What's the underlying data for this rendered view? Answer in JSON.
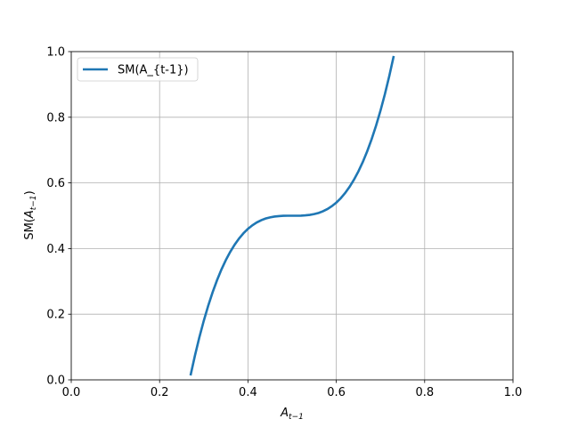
{
  "chart_data": {
    "type": "line",
    "xlabel": [
      "A",
      "t−1"
    ],
    "ylabel": [
      "SM(",
      "A",
      "t−1",
      ")"
    ],
    "x": [
      0.27,
      0.28,
      0.29,
      0.3,
      0.31,
      0.32,
      0.33,
      0.34,
      0.35,
      0.36,
      0.37,
      0.38,
      0.39,
      0.4,
      0.41,
      0.42,
      0.43,
      0.44,
      0.45,
      0.46,
      0.47,
      0.48,
      0.49,
      0.5,
      0.51,
      0.52,
      0.53,
      0.54,
      0.55,
      0.56,
      0.57,
      0.58,
      0.59,
      0.6,
      0.61,
      0.62,
      0.63,
      0.64,
      0.65,
      0.66,
      0.67,
      0.68,
      0.69,
      0.7,
      0.71,
      0.72,
      0.73
    ],
    "series": [
      {
        "name": "SM(A_{t-1})",
        "color": "#1f77b4",
        "values": [
          0.0133,
          0.0741,
          0.1296,
          0.18,
          0.2256,
          0.2667,
          0.3035,
          0.3362,
          0.365,
          0.3902,
          0.4121,
          0.4309,
          0.4468,
          0.46,
          0.4708,
          0.4795,
          0.4863,
          0.4914,
          0.495,
          0.4974,
          0.4989,
          0.4997,
          0.5,
          0.5,
          0.5,
          0.5003,
          0.5011,
          0.5026,
          0.505,
          0.5086,
          0.5137,
          0.5205,
          0.5292,
          0.54,
          0.5532,
          0.5691,
          0.5879,
          0.6098,
          0.635,
          0.6638,
          0.6965,
          0.7333,
          0.7744,
          0.82,
          0.8704,
          0.9259,
          0.9867
        ]
      }
    ],
    "xlim": [
      0,
      1
    ],
    "ylim": [
      0,
      1
    ],
    "xticks": [
      {
        "value": 0,
        "label": "0.0"
      },
      {
        "value": 0.2,
        "label": "0.2"
      },
      {
        "value": 0.4,
        "label": "0.4"
      },
      {
        "value": 0.6,
        "label": "0.6"
      },
      {
        "value": 0.8,
        "label": "0.8"
      },
      {
        "value": 1,
        "label": "1.0"
      }
    ],
    "yticks": [
      {
        "value": 0,
        "label": "0.0"
      },
      {
        "value": 0.2,
        "label": "0.2"
      },
      {
        "value": 0.4,
        "label": "0.4"
      },
      {
        "value": 0.6,
        "label": "0.6"
      },
      {
        "value": 0.8,
        "label": "0.8"
      },
      {
        "value": 1,
        "label": "1.0"
      }
    ],
    "grid": true,
    "legend": "upper left"
  }
}
